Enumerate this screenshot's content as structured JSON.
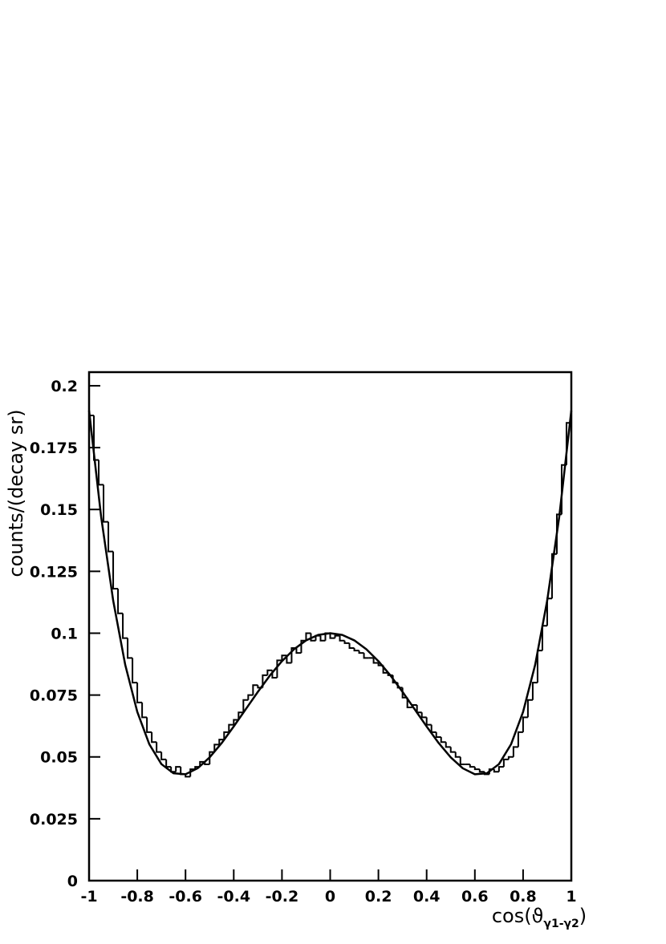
{
  "chart_data": {
    "type": "histogram",
    "xlabel": [
      "cos(ϑ",
      "γ1-γ2",
      ")"
    ],
    "ylabel": "counts/(decay sr)",
    "bins": [
      -1,
      -0.98,
      -0.96,
      -0.94,
      -0.92,
      -0.9,
      -0.88,
      -0.86,
      -0.84,
      -0.82,
      -0.8,
      -0.78,
      -0.76,
      -0.74,
      -0.72,
      -0.7,
      -0.68,
      -0.66,
      -0.64,
      -0.62,
      -0.6,
      -0.58,
      -0.56,
      -0.54,
      -0.52,
      -0.5,
      -0.48,
      -0.46,
      -0.44,
      -0.42,
      -0.4,
      -0.38,
      -0.36,
      -0.34,
      -0.32,
      -0.3,
      -0.28,
      -0.26,
      -0.24,
      -0.22,
      -0.2,
      -0.18,
      -0.16,
      -0.14,
      -0.12,
      -0.1,
      -0.08,
      -0.06,
      -0.04,
      -0.02,
      0,
      0.02,
      0.04,
      0.06,
      0.08,
      0.1,
      0.12,
      0.14,
      0.16,
      0.18,
      0.2,
      0.22,
      0.24,
      0.26,
      0.28,
      0.3,
      0.32,
      0.34,
      0.36,
      0.38,
      0.4,
      0.42,
      0.44,
      0.46,
      0.48,
      0.5,
      0.52,
      0.54,
      0.56,
      0.58,
      0.6,
      0.62,
      0.64,
      0.66,
      0.68,
      0.7,
      0.72,
      0.74,
      0.76,
      0.78,
      0.8,
      0.82,
      0.84,
      0.86,
      0.88,
      0.9,
      0.92,
      0.94,
      0.96,
      0.98,
      1
    ],
    "values": [
      0.188,
      0.17,
      0.16,
      0.145,
      0.133,
      0.118,
      0.108,
      0.098,
      0.09,
      0.08,
      0.072,
      0.066,
      0.06,
      0.056,
      0.052,
      0.049,
      0.046,
      0.044,
      0.046,
      0.043,
      0.042,
      0.045,
      0.046,
      0.048,
      0.047,
      0.052,
      0.055,
      0.057,
      0.06,
      0.063,
      0.065,
      0.068,
      0.073,
      0.075,
      0.079,
      0.078,
      0.083,
      0.085,
      0.082,
      0.089,
      0.091,
      0.088,
      0.094,
      0.092,
      0.097,
      0.1,
      0.097,
      0.099,
      0.097,
      0.1,
      0.098,
      0.099,
      0.097,
      0.096,
      0.094,
      0.093,
      0.092,
      0.09,
      0.09,
      0.088,
      0.087,
      0.084,
      0.083,
      0.08,
      0.078,
      0.074,
      0.07,
      0.071,
      0.068,
      0.066,
      0.063,
      0.06,
      0.058,
      0.056,
      0.054,
      0.052,
      0.05,
      0.047,
      0.047,
      0.046,
      0.045,
      0.044,
      0.043,
      0.045,
      0.044,
      0.046,
      0.049,
      0.05,
      0.054,
      0.06,
      0.066,
      0.073,
      0.08,
      0.093,
      0.103,
      0.114,
      0.132,
      0.148,
      0.168,
      0.185
    ],
    "color": "#000000",
    "fit": {
      "x": [
        -1,
        -0.95,
        -0.9,
        -0.85,
        -0.8,
        -0.75,
        -0.7,
        -0.65,
        -0.6,
        -0.55,
        -0.5,
        -0.45,
        -0.4,
        -0.35,
        -0.3,
        -0.25,
        -0.2,
        -0.15,
        -0.1,
        -0.05,
        0,
        0.05,
        0.1,
        0.15,
        0.2,
        0.25,
        0.3,
        0.35,
        0.4,
        0.45,
        0.5,
        0.55,
        0.6,
        0.65,
        0.7,
        0.75,
        0.8,
        0.85,
        0.9,
        0.95,
        1
      ],
      "values": [
        0.19,
        0.1471,
        0.1132,
        0.0872,
        0.0682,
        0.0551,
        0.0471,
        0.0434,
        0.043,
        0.0454,
        0.0498,
        0.0556,
        0.0623,
        0.0693,
        0.0763,
        0.0829,
        0.0887,
        0.0935,
        0.0971,
        0.0993,
        0.1,
        0.0993,
        0.0971,
        0.0935,
        0.0887,
        0.0829,
        0.0763,
        0.0693,
        0.0623,
        0.0556,
        0.0498,
        0.0454,
        0.043,
        0.0434,
        0.0471,
        0.0551,
        0.0682,
        0.0872,
        0.1132,
        0.1471,
        0.19
      ],
      "color": "#000000"
    },
    "xlim": [
      -1,
      1
    ],
    "xticks": [
      -1,
      -0.8,
      -0.6,
      -0.4,
      -0.2,
      0,
      0.2,
      0.4,
      0.6,
      0.8,
      1
    ],
    "ylim": [
      0,
      0.2055
    ],
    "yticks": [
      0,
      0.025,
      0.05,
      0.075,
      0.1,
      0.125,
      0.15,
      0.175,
      0.2
    ]
  }
}
